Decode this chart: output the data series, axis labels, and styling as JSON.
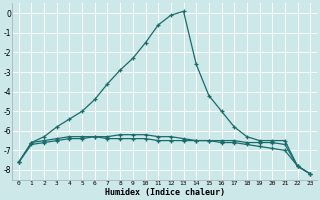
{
  "xlabel": "Humidex (Indice chaleur)",
  "background_color": "#cce8e8",
  "grid_color": "#ffffff",
  "line_color": "#1a6b6b",
  "xlim": [
    -0.5,
    23.5
  ],
  "ylim": [
    -8.5,
    0.5
  ],
  "yticks": [
    0,
    -1,
    -2,
    -3,
    -4,
    -5,
    -6,
    -7,
    -8
  ],
  "xticks": [
    0,
    1,
    2,
    3,
    4,
    5,
    6,
    7,
    8,
    9,
    10,
    11,
    12,
    13,
    14,
    15,
    16,
    17,
    18,
    19,
    20,
    21,
    22,
    23
  ],
  "series1_x": [
    0,
    1,
    2,
    3,
    4,
    5,
    6,
    7,
    8,
    9,
    10,
    11,
    12,
    13,
    14,
    15,
    16,
    17,
    18,
    19,
    20,
    21,
    22,
    23
  ],
  "series1_y": [
    -7.6,
    -6.6,
    -6.3,
    -5.8,
    -5.4,
    -5.0,
    -4.4,
    -3.6,
    -2.9,
    -2.3,
    -1.5,
    -0.6,
    -0.1,
    0.1,
    -2.6,
    -4.2,
    -5.0,
    -5.8,
    -6.3,
    -6.5,
    -6.5,
    -6.5,
    -7.8,
    -8.2
  ],
  "series2_x": [
    0,
    1,
    2,
    3,
    4,
    5,
    6,
    7,
    8,
    9,
    10,
    11,
    12,
    13,
    14,
    15,
    16,
    17,
    18,
    19,
    20,
    21,
    22,
    23
  ],
  "series2_y": [
    -7.6,
    -6.6,
    -6.5,
    -6.4,
    -6.3,
    -6.3,
    -6.3,
    -6.4,
    -6.4,
    -6.4,
    -6.4,
    -6.5,
    -6.5,
    -6.5,
    -6.5,
    -6.5,
    -6.5,
    -6.5,
    -6.6,
    -6.6,
    -6.6,
    -6.7,
    -7.8,
    -8.2
  ],
  "series3_x": [
    0,
    1,
    2,
    3,
    4,
    5,
    6,
    7,
    8,
    9,
    10,
    11,
    12,
    13,
    14,
    15,
    16,
    17,
    18,
    19,
    20,
    21,
    22,
    23
  ],
  "series3_y": [
    -7.6,
    -6.7,
    -6.6,
    -6.5,
    -6.4,
    -6.4,
    -6.3,
    -6.3,
    -6.2,
    -6.2,
    -6.2,
    -6.3,
    -6.3,
    -6.4,
    -6.5,
    -6.5,
    -6.6,
    -6.6,
    -6.7,
    -6.8,
    -6.9,
    -7.0,
    -7.8,
    -8.2
  ]
}
